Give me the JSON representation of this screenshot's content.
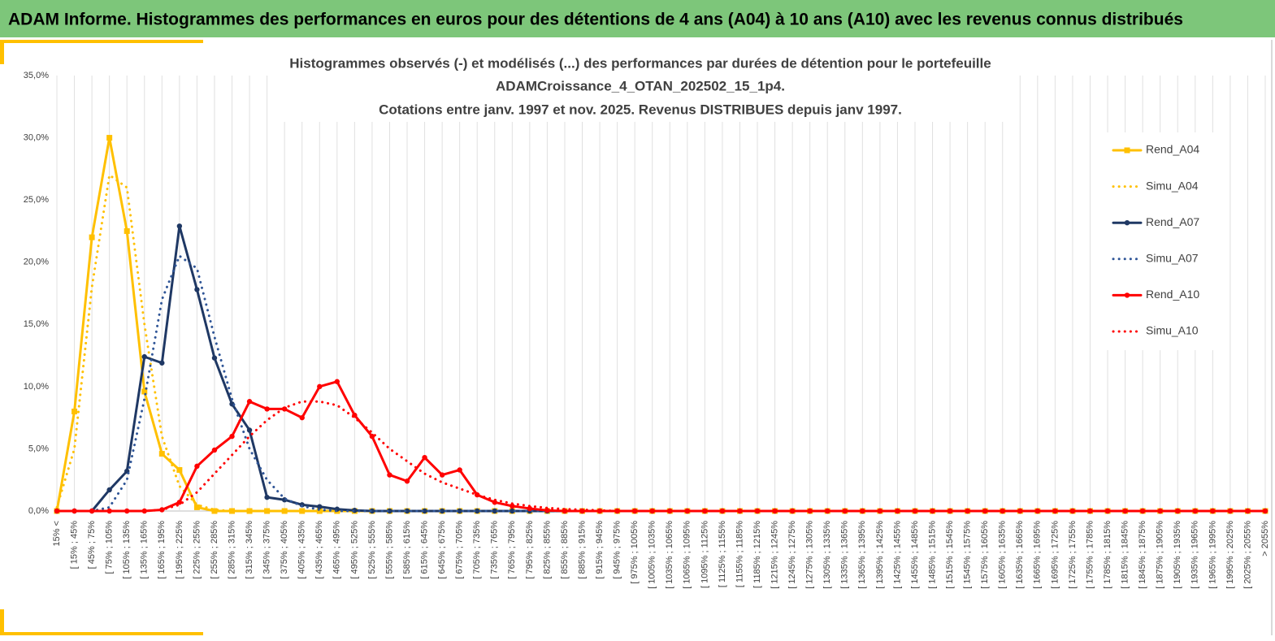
{
  "header": "ADAM Informe. Histogrammes des performances en euros pour des détentions de 4 ans (A04) à 10 ans (A10) avec les revenus connus distribués",
  "chart_data": {
    "type": "line",
    "title": [
      "Histogrammes observés (-) et modélisés (...) des performances par durées de détention pour le portefeuille",
      "ADAMCroissance_4_OTAN_202502_15_1p4.",
      "Cotations entre janv. 1997 et nov. 2025. Revenus DISTRIBUES depuis janv 1997."
    ],
    "categories": [
      "15% <",
      "[ 15% ; 45%",
      "[ 45% ; 75%",
      "[ 75% ; 105%",
      "[ 105% ; 135%",
      "[ 135% ; 165%",
      "[ 165% ; 195%",
      "[ 195% ; 225%",
      "[ 225% ; 255%",
      "[ 255% ; 285%",
      "[ 285% ; 315%",
      "[ 315% ; 345%",
      "[ 345% ; 375%",
      "[ 375% ; 405%",
      "[ 405% ; 435%",
      "[ 435% ; 465%",
      "[ 465% ; 495%",
      "[ 495% ; 525%",
      "[ 525% ; 555%",
      "[ 555% ; 585%",
      "[ 585% ; 615%",
      "[ 615% ; 645%",
      "[ 645% ; 675%",
      "[ 675% ; 705%",
      "[ 705% ; 735%",
      "[ 735% ; 765%",
      "[ 765% ; 795%",
      "[ 795% ; 825%",
      "[ 825% ; 855%",
      "[ 855% ; 885%",
      "[ 885% ; 915%",
      "[ 915% ; 945%",
      "[ 945% ; 975%",
      "[ 975% ; 1005%",
      "[ 1005% ; 1035%",
      "[ 1035% ; 1065%",
      "[ 1065% ; 1095%",
      "[ 1095% ; 1125%",
      "[ 1125% ; 1155%",
      "[ 1155% ; 1185%",
      "[ 1185% ; 1215%",
      "[ 1215% ; 1245%",
      "[ 1245% ; 1275%",
      "[ 1275% ; 1305%",
      "[ 1305% ; 1335%",
      "[ 1335% ; 1365%",
      "[ 1365% ; 1395%",
      "[ 1395% ; 1425%",
      "[ 1425% ; 1455%",
      "[ 1455% ; 1485%",
      "[ 1485% ; 1515%",
      "[ 1515% ; 1545%",
      "[ 1545% ; 1575%",
      "[ 1575% ; 1605%",
      "[ 1605% ; 1635%",
      "[ 1635% ; 1665%",
      "[ 1665% ; 1695%",
      "[ 1695% ; 1725%",
      "[ 1725% ; 1755%",
      "[ 1755% ; 1785%",
      "[ 1785% ; 1815%",
      "[ 1815% ; 1845%",
      "[ 1845% ; 1875%",
      "[ 1875% ; 1905%",
      "[ 1905% ; 1935%",
      "[ 1935% ; 1965%",
      "[ 1965% ; 1995%",
      "[ 1995% ; 2025%",
      "[ 2025% ; 2055%",
      "> 2055%"
    ],
    "series": [
      {
        "name": "Rend_A04",
        "color": "#ffc000",
        "style": "solid",
        "marker": "square",
        "values": [
          0,
          8,
          22,
          30,
          22.5,
          9.6,
          4.6,
          3.3,
          0.3,
          0,
          0,
          0,
          0,
          0,
          0,
          0,
          0,
          0,
          0,
          0,
          0,
          0,
          0,
          0,
          0,
          0,
          0,
          0,
          0,
          0,
          0,
          0,
          0,
          0,
          0,
          0,
          0,
          0,
          0,
          0,
          0,
          0,
          0,
          0,
          0,
          0,
          0,
          0,
          0,
          0,
          0,
          0,
          0,
          0,
          0,
          0,
          0,
          0,
          0,
          0,
          0,
          0,
          0,
          0,
          0,
          0,
          0,
          0,
          0,
          0
        ]
      },
      {
        "name": "Simu_A04",
        "color": "#ffc000",
        "style": "dotted",
        "values": [
          0.3,
          5,
          18,
          27,
          26,
          15,
          6,
          2,
          0.5,
          0.1,
          0,
          0,
          0,
          0,
          0,
          0,
          0,
          0,
          0,
          0,
          0,
          0,
          0,
          0,
          0,
          0,
          0,
          0,
          0,
          0,
          0,
          0,
          0,
          0,
          0,
          0,
          0,
          0,
          0,
          0,
          0,
          0,
          0,
          0,
          0,
          0,
          0,
          0,
          0,
          0,
          0,
          0,
          0,
          0,
          0,
          0,
          0,
          0,
          0,
          0,
          0,
          0,
          0,
          0,
          0,
          0,
          0,
          0,
          0,
          0
        ]
      },
      {
        "name": "Rend_A07",
        "color": "#1f3864",
        "style": "solid",
        "marker": "circle",
        "values": [
          0,
          0,
          0,
          1.7,
          3.2,
          12.4,
          11.9,
          22.9,
          17.8,
          12.3,
          8.6,
          6.5,
          1.1,
          0.9,
          0.5,
          0.35,
          0.15,
          0.05,
          0,
          0,
          0,
          0,
          0,
          0,
          0,
          0,
          0,
          0,
          0,
          0,
          0,
          0,
          0,
          0,
          0,
          0,
          0,
          0,
          0,
          0,
          0,
          0,
          0,
          0,
          0,
          0,
          0,
          0,
          0,
          0,
          0,
          0,
          0,
          0,
          0,
          0,
          0,
          0,
          0,
          0,
          0,
          0,
          0,
          0,
          0,
          0,
          0,
          0,
          0,
          0
        ]
      },
      {
        "name": "Simu_A07",
        "color": "#2f5597",
        "style": "dotted",
        "values": [
          0,
          0,
          0,
          0.3,
          2.5,
          9,
          17,
          20.5,
          19.5,
          14,
          9,
          5,
          2.5,
          1,
          0.4,
          0.1,
          0,
          0,
          0,
          0,
          0,
          0,
          0,
          0,
          0,
          0,
          0,
          0,
          0,
          0,
          0,
          0,
          0,
          0,
          0,
          0,
          0,
          0,
          0,
          0,
          0,
          0,
          0,
          0,
          0,
          0,
          0,
          0,
          0,
          0,
          0,
          0,
          0,
          0,
          0,
          0,
          0,
          0,
          0,
          0,
          0,
          0,
          0,
          0,
          0,
          0,
          0,
          0,
          0,
          0
        ]
      },
      {
        "name": "Rend_A10",
        "color": "#ff0000",
        "style": "solid",
        "marker": "circle",
        "values": [
          0,
          0,
          0,
          0,
          0,
          0,
          0.1,
          0.7,
          3.6,
          4.9,
          6.0,
          8.8,
          8.2,
          8.2,
          7.5,
          10.0,
          10.4,
          7.7,
          6.0,
          2.9,
          2.4,
          4.3,
          2.9,
          3.3,
          1.3,
          0.7,
          0.4,
          0.2,
          0.05,
          0,
          0,
          0,
          0,
          0,
          0,
          0,
          0,
          0,
          0,
          0,
          0,
          0,
          0,
          0,
          0,
          0,
          0,
          0,
          0,
          0,
          0,
          0,
          0,
          0,
          0,
          0,
          0,
          0,
          0,
          0,
          0,
          0,
          0,
          0,
          0,
          0,
          0,
          0,
          0,
          0
        ]
      },
      {
        "name": "Simu_A10",
        "color": "#ff0000",
        "style": "dotted",
        "values": [
          0,
          0,
          0,
          0,
          0,
          0,
          0.1,
          0.5,
          1.5,
          3,
          4.5,
          6,
          7.3,
          8.3,
          8.8,
          8.8,
          8.5,
          7.5,
          6.3,
          5,
          4,
          3,
          2.3,
          1.8,
          1.3,
          0.9,
          0.6,
          0.4,
          0.25,
          0.15,
          0.1,
          0.05,
          0,
          0,
          0,
          0,
          0,
          0,
          0,
          0,
          0,
          0,
          0,
          0,
          0,
          0,
          0,
          0,
          0,
          0,
          0,
          0,
          0,
          0,
          0,
          0,
          0,
          0,
          0,
          0,
          0,
          0,
          0,
          0,
          0,
          0,
          0,
          0,
          0,
          0
        ]
      }
    ],
    "ylim": [
      0,
      35
    ],
    "yticks": [
      {
        "value": 0,
        "label": "0,0%"
      },
      {
        "value": 5,
        "label": "5,0%"
      },
      {
        "value": 10,
        "label": "10,0%"
      },
      {
        "value": 15,
        "label": "15,0%"
      },
      {
        "value": 20,
        "label": "20,0%"
      },
      {
        "value": 25,
        "label": "25,0%"
      },
      {
        "value": 30,
        "label": "30,0%"
      },
      {
        "value": 35,
        "label": "35,0%"
      }
    ],
    "grid": "x",
    "legend": "right"
  }
}
